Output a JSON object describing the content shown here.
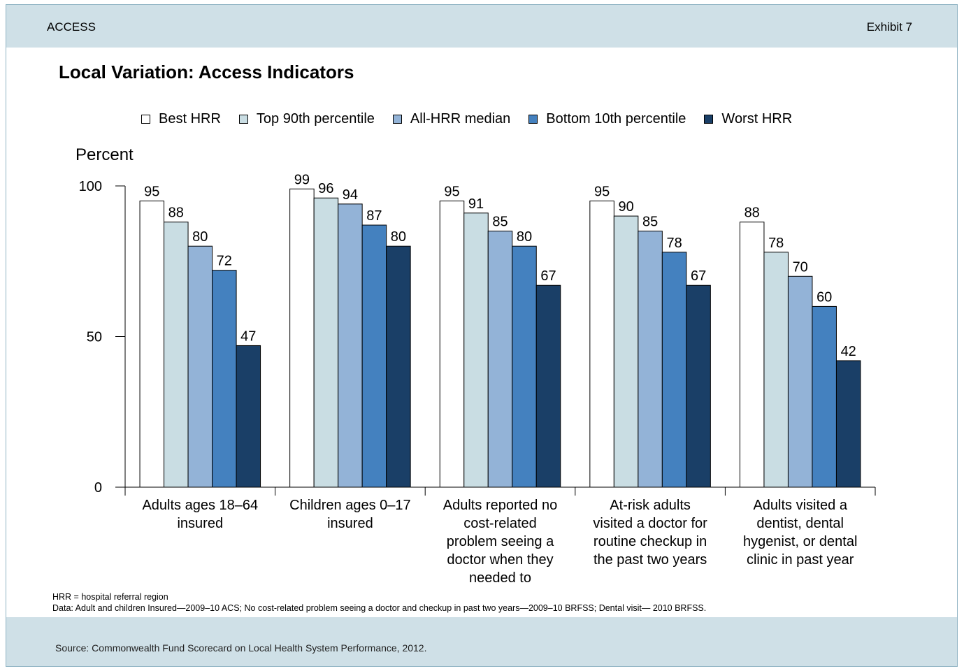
{
  "header": {
    "section": "ACCESS",
    "exhibit": "Exhibit 7"
  },
  "footer": {
    "source": "Source: Commonwealth Fund Scorecard on Local Health System Performance, 2012."
  },
  "notes": [
    "HRR = hospital referral region",
    "Data: Adult and children Insured—2009–10 ACS; No cost-related problem seeing a doctor and checkup in past two years—2009–10 BRFSS; Dental visit— 2010 BRFSS."
  ],
  "chart_data": {
    "type": "bar",
    "title": "Local Variation: Access Indicators",
    "ylabel": "Percent",
    "xlabel": "",
    "ylim": [
      0,
      100
    ],
    "yticks": [
      0,
      50,
      100
    ],
    "legend_position": "top",
    "categories": [
      [
        "Adults ages 18–64",
        "insured"
      ],
      [
        "Children ages 0–17",
        "insured"
      ],
      [
        "Adults reported no",
        "cost-related",
        "problem seeing a",
        "doctor when they",
        "needed to"
      ],
      [
        "At-risk adults",
        "visited a doctor for",
        "routine checkup in",
        "the past two years"
      ],
      [
        "Adults visited a",
        "dentist, dental",
        "hygenist, or dental",
        "clinic in past year"
      ]
    ],
    "series": [
      {
        "name": "Best HRR",
        "color": "#ffffff",
        "values": [
          95,
          99,
          95,
          95,
          88
        ]
      },
      {
        "name": "Top 90th percentile",
        "color": "#c9dde3",
        "values": [
          88,
          96,
          91,
          90,
          78
        ]
      },
      {
        "name": "All-HRR median",
        "color": "#93b3d7",
        "values": [
          80,
          94,
          85,
          85,
          70
        ]
      },
      {
        "name": "Bottom 10th percentile",
        "color": "#4481bf",
        "values": [
          72,
          87,
          80,
          78,
          60
        ]
      },
      {
        "name": "Worst HRR",
        "color": "#1a3f67",
        "values": [
          47,
          80,
          67,
          67,
          42
        ]
      }
    ]
  }
}
